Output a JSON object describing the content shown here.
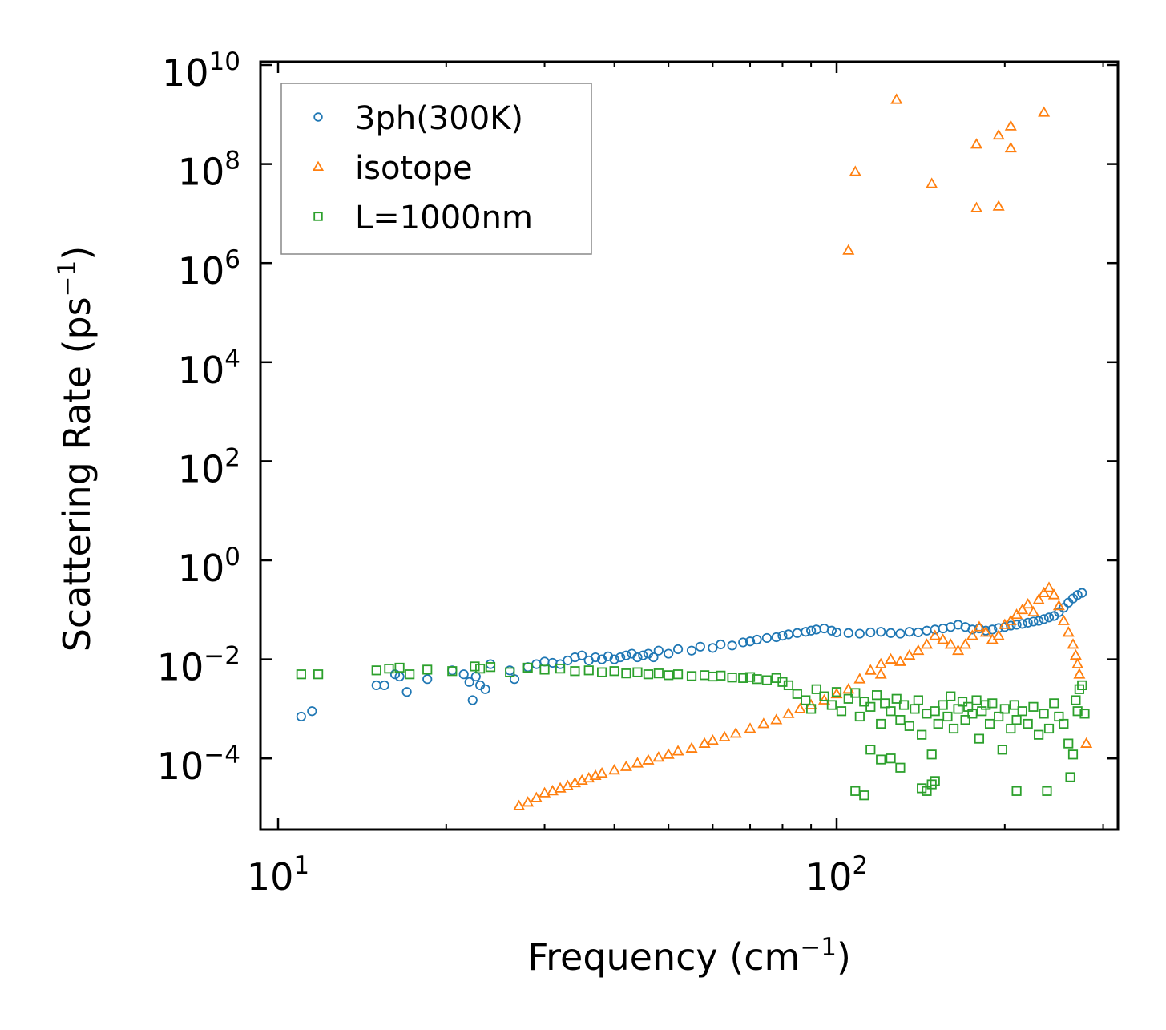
{
  "chart_data": {
    "type": "scatter",
    "xscale": "log",
    "yscale": "log",
    "xlim": [
      9.3,
      320
    ],
    "ylim": [
      3e-06,
      10000000000.0
    ],
    "xlabel": "Frequency (cm",
    "xlabel_sup": "−1",
    "xlabel_close": ")",
    "ylabel": "Scattering Rate (ps",
    "ylabel_sup": "−1",
    "ylabel_close": ")",
    "legend_position": "upper-left",
    "x_major_ticks": [
      {
        "value": 10,
        "base": "10",
        "exp": "1"
      },
      {
        "value": 100,
        "base": "10",
        "exp": "2"
      }
    ],
    "y_major_ticks": [
      {
        "value": 0.0001,
        "base": "10",
        "exp": "−4"
      },
      {
        "value": 0.01,
        "base": "10",
        "exp": "−2"
      },
      {
        "value": 1,
        "base": "10",
        "exp": "0"
      },
      {
        "value": 100,
        "base": "10",
        "exp": "2"
      },
      {
        "value": 10000,
        "base": "10",
        "exp": "4"
      },
      {
        "value": 1000000,
        "base": "10",
        "exp": "6"
      },
      {
        "value": 100000000,
        "base": "10",
        "exp": "8"
      },
      {
        "value": 10000000000,
        "base": "10",
        "exp": "10"
      }
    ],
    "series": [
      {
        "name": "3ph(300K)",
        "marker": "circle",
        "color": "#1f77b4",
        "points": [
          [
            11,
            0.0007
          ],
          [
            11.5,
            0.0009
          ],
          [
            15,
            0.003
          ],
          [
            15.5,
            0.003
          ],
          [
            16.2,
            0.005
          ],
          [
            16.5,
            0.0045
          ],
          [
            17,
            0.0022
          ],
          [
            18.5,
            0.004
          ],
          [
            20.5,
            0.006
          ],
          [
            21.5,
            0.005
          ],
          [
            22,
            0.0035
          ],
          [
            22.3,
            0.0015
          ],
          [
            22.6,
            0.0045
          ],
          [
            23,
            0.003
          ],
          [
            23.5,
            0.0025
          ],
          [
            24,
            0.008
          ],
          [
            26,
            0.006
          ],
          [
            26.5,
            0.004
          ],
          [
            28,
            0.007
          ],
          [
            29,
            0.008
          ],
          [
            30,
            0.009
          ],
          [
            31,
            0.0085
          ],
          [
            32,
            0.008
          ],
          [
            33,
            0.0095
          ],
          [
            34,
            0.011
          ],
          [
            35,
            0.012
          ],
          [
            36,
            0.0095
          ],
          [
            37,
            0.011
          ],
          [
            38,
            0.01
          ],
          [
            39,
            0.0115
          ],
          [
            40,
            0.01
          ],
          [
            41,
            0.011
          ],
          [
            42,
            0.012
          ],
          [
            43,
            0.013
          ],
          [
            44,
            0.011
          ],
          [
            45,
            0.012
          ],
          [
            46,
            0.013
          ],
          [
            47,
            0.011
          ],
          [
            48,
            0.015
          ],
          [
            50,
            0.013
          ],
          [
            52,
            0.016
          ],
          [
            55,
            0.015
          ],
          [
            57,
            0.018
          ],
          [
            60,
            0.017
          ],
          [
            62,
            0.02
          ],
          [
            65,
            0.019
          ],
          [
            68,
            0.022
          ],
          [
            70,
            0.023
          ],
          [
            72,
            0.025
          ],
          [
            75,
            0.027
          ],
          [
            78,
            0.028
          ],
          [
            80,
            0.03
          ],
          [
            82,
            0.032
          ],
          [
            85,
            0.034
          ],
          [
            88,
            0.036
          ],
          [
            90,
            0.038
          ],
          [
            92,
            0.04
          ],
          [
            95,
            0.042
          ],
          [
            98,
            0.038
          ],
          [
            100,
            0.035
          ],
          [
            105,
            0.034
          ],
          [
            110,
            0.033
          ],
          [
            115,
            0.035
          ],
          [
            120,
            0.036
          ],
          [
            125,
            0.034
          ],
          [
            130,
            0.033
          ],
          [
            135,
            0.036
          ],
          [
            140,
            0.035
          ],
          [
            145,
            0.038
          ],
          [
            150,
            0.04
          ],
          [
            155,
            0.042
          ],
          [
            160,
            0.045
          ],
          [
            165,
            0.05
          ],
          [
            170,
            0.045
          ],
          [
            175,
            0.04
          ],
          [
            180,
            0.042
          ],
          [
            185,
            0.038
          ],
          [
            190,
            0.04
          ],
          [
            195,
            0.043
          ],
          [
            200,
            0.045
          ],
          [
            205,
            0.048
          ],
          [
            210,
            0.05
          ],
          [
            215,
            0.052
          ],
          [
            220,
            0.055
          ],
          [
            225,
            0.058
          ],
          [
            230,
            0.06
          ],
          [
            235,
            0.065
          ],
          [
            240,
            0.07
          ],
          [
            245,
            0.075
          ],
          [
            250,
            0.09
          ],
          [
            255,
            0.11
          ],
          [
            260,
            0.14
          ],
          [
            265,
            0.17
          ],
          [
            270,
            0.2
          ],
          [
            275,
            0.22
          ]
        ]
      },
      {
        "name": "isotope",
        "marker": "triangle",
        "color": "#ff7f0e",
        "points": [
          [
            27,
            1.1e-05
          ],
          [
            28,
            1.3e-05
          ],
          [
            29,
            1.6e-05
          ],
          [
            30,
            2e-05
          ],
          [
            31,
            2.2e-05
          ],
          [
            32,
            2.5e-05
          ],
          [
            33,
            2.8e-05
          ],
          [
            34,
            3.2e-05
          ],
          [
            35,
            3.6e-05
          ],
          [
            36,
            4e-05
          ],
          [
            37,
            4.5e-05
          ],
          [
            38,
            5e-05
          ],
          [
            40,
            5.8e-05
          ],
          [
            42,
            6.8e-05
          ],
          [
            44,
            8e-05
          ],
          [
            46,
            9.2e-05
          ],
          [
            48,
            0.000105
          ],
          [
            50,
            0.00012
          ],
          [
            52,
            0.00014
          ],
          [
            55,
            0.00016
          ],
          [
            58,
            0.0002
          ],
          [
            60,
            0.00023
          ],
          [
            63,
            0.00027
          ],
          [
            66,
            0.00032
          ],
          [
            70,
            0.0004
          ],
          [
            74,
            0.0005
          ],
          [
            78,
            0.0006
          ],
          [
            82,
            0.0008
          ],
          [
            86,
            0.001
          ],
          [
            90,
            0.0012
          ],
          [
            95,
            0.0015
          ],
          [
            100,
            0.002
          ],
          [
            105,
            0.0025
          ],
          [
            110,
            0.004
          ],
          [
            115,
            0.006
          ],
          [
            120,
            0.008
          ],
          [
            125,
            0.01
          ],
          [
            130,
            0.009
          ],
          [
            135,
            0.012
          ],
          [
            140,
            0.015
          ],
          [
            145,
            0.02
          ],
          [
            150,
            0.03
          ],
          [
            155,
            0.025
          ],
          [
            160,
            0.02
          ],
          [
            165,
            0.015
          ],
          [
            170,
            0.02
          ],
          [
            175,
            0.03
          ],
          [
            180,
            0.045
          ],
          [
            185,
            0.035
          ],
          [
            190,
            0.025
          ],
          [
            195,
            0.03
          ],
          [
            200,
            0.05
          ],
          [
            205,
            0.06
          ],
          [
            210,
            0.08
          ],
          [
            215,
            0.1
          ],
          [
            220,
            0.13
          ],
          [
            225,
            0.09
          ],
          [
            230,
            0.16
          ],
          [
            235,
            0.22
          ],
          [
            240,
            0.28
          ],
          [
            245,
            0.2
          ],
          [
            250,
            0.12
          ],
          [
            255,
            0.06
          ],
          [
            260,
            0.035
          ],
          [
            265,
            0.02
          ],
          [
            268,
            0.012
          ],
          [
            270,
            0.008
          ],
          [
            272,
            0.005
          ],
          [
            280,
            0.0002
          ],
          [
            120,
            0.005
          ],
          [
            105,
            1800000
          ],
          [
            108,
            70000000
          ],
          [
            128,
            2000000000
          ],
          [
            148,
            40000000
          ],
          [
            178,
            250000000
          ],
          [
            178,
            13000000
          ],
          [
            195,
            14000000
          ],
          [
            195,
            380000000
          ],
          [
            205,
            580000000
          ],
          [
            205,
            210000000
          ],
          [
            235,
            1100000000
          ]
        ]
      },
      {
        "name": "L=1000nm",
        "marker": "square",
        "color": "#2ca02c",
        "points": [
          [
            11,
            0.005
          ],
          [
            11.8,
            0.005
          ],
          [
            15,
            0.006
          ],
          [
            15.8,
            0.0065
          ],
          [
            16.5,
            0.0068
          ],
          [
            17.2,
            0.005
          ],
          [
            18.5,
            0.0062
          ],
          [
            20.5,
            0.0058
          ],
          [
            22.5,
            0.0072
          ],
          [
            23,
            0.0065
          ],
          [
            24,
            0.007
          ],
          [
            26,
            0.0055
          ],
          [
            28,
            0.0068
          ],
          [
            30,
            0.0062
          ],
          [
            32,
            0.0065
          ],
          [
            34,
            0.0058
          ],
          [
            36,
            0.006
          ],
          [
            38,
            0.0055
          ],
          [
            40,
            0.0058
          ],
          [
            42,
            0.0052
          ],
          [
            44,
            0.0055
          ],
          [
            46,
            0.005
          ],
          [
            48,
            0.0052
          ],
          [
            50,
            0.0048
          ],
          [
            52,
            0.005
          ],
          [
            55,
            0.0046
          ],
          [
            58,
            0.0048
          ],
          [
            60,
            0.0045
          ],
          [
            62,
            0.0047
          ],
          [
            65,
            0.0043
          ],
          [
            68,
            0.0042
          ],
          [
            70,
            0.0044
          ],
          [
            72,
            0.004
          ],
          [
            75,
            0.0038
          ],
          [
            78,
            0.0042
          ],
          [
            80,
            0.0035
          ],
          [
            82,
            0.003
          ],
          [
            85,
            0.002
          ],
          [
            88,
            0.0015
          ],
          [
            90,
            0.001
          ],
          [
            92,
            0.0025
          ],
          [
            95,
            0.0018
          ],
          [
            98,
            0.0012
          ],
          [
            100,
            0.0022
          ],
          [
            102,
            0.0009
          ],
          [
            105,
            0.0016
          ],
          [
            108,
            0.0021
          ],
          [
            110,
            0.0007
          ],
          [
            112,
            0.0014
          ],
          [
            115,
            0.0011
          ],
          [
            118,
            0.0019
          ],
          [
            120,
            0.0005
          ],
          [
            122,
            0.0013
          ],
          [
            125,
            0.0009
          ],
          [
            128,
            0.0016
          ],
          [
            130,
            0.0006
          ],
          [
            132,
            0.0012
          ],
          [
            135,
            0.00045
          ],
          [
            138,
            0.001
          ],
          [
            140,
            0.0015
          ],
          [
            142,
            0.0003
          ],
          [
            145,
            0.0008
          ],
          [
            148,
            0.00012
          ],
          [
            150,
            0.0009
          ],
          [
            152,
            0.0005
          ],
          [
            155,
            0.0012
          ],
          [
            158,
            0.0007
          ],
          [
            160,
            0.0018
          ],
          [
            162,
            0.0004
          ],
          [
            165,
            0.001
          ],
          [
            168,
            0.0014
          ],
          [
            170,
            0.0006
          ],
          [
            172,
            0.0011
          ],
          [
            175,
            0.0008
          ],
          [
            178,
            0.0015
          ],
          [
            180,
            0.00025
          ],
          [
            182,
            0.0009
          ],
          [
            185,
            0.0012
          ],
          [
            188,
            0.0005
          ],
          [
            190,
            0.0013
          ],
          [
            195,
            0.0007
          ],
          [
            198,
            0.00015
          ],
          [
            200,
            0.001
          ],
          [
            205,
            0.0004
          ],
          [
            208,
            0.0012
          ],
          [
            210,
            0.0006
          ],
          [
            215,
            0.0009
          ],
          [
            220,
            0.0005
          ],
          [
            225,
            0.0011
          ],
          [
            230,
            0.0003
          ],
          [
            235,
            0.0008
          ],
          [
            240,
            0.0004
          ],
          [
            245,
            0.0013
          ],
          [
            250,
            0.0007
          ],
          [
            255,
            0.0005
          ],
          [
            260,
            0.0002
          ],
          [
            265,
            0.00012
          ],
          [
            268,
            0.0015
          ],
          [
            270,
            0.0009
          ],
          [
            272,
            0.0025
          ],
          [
            275,
            0.003
          ],
          [
            278,
            0.0008
          ],
          [
            108,
            2.2e-05
          ],
          [
            112,
            1.8e-05
          ],
          [
            120,
            9.5e-05
          ],
          [
            142,
            2.5e-05
          ],
          [
            145,
            2.2e-05
          ],
          [
            148,
            3e-05
          ],
          [
            150,
            3.5e-05
          ],
          [
            210,
            2.2e-05
          ],
          [
            238,
            2.2e-05
          ],
          [
            262,
            4.2e-05
          ],
          [
            115,
            0.00015
          ],
          [
            125,
            0.0001
          ],
          [
            130,
            6.5e-05
          ]
        ]
      }
    ]
  }
}
